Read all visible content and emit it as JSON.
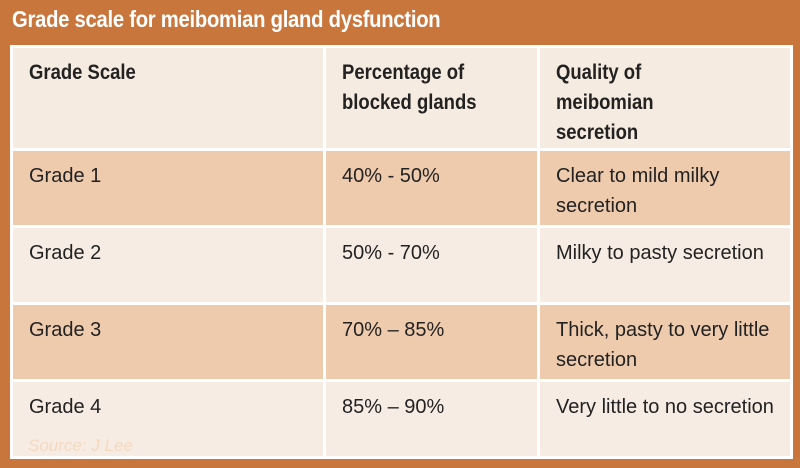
{
  "header": {
    "title": "Grade scale for meibomian gland dysfunction"
  },
  "table": {
    "columns": [
      "Grade Scale",
      "Percentage of blocked glands",
      "Quality of meibomian secretion"
    ],
    "rows": [
      [
        "Grade 1",
        "40% - 50%",
        "Clear to mild milky secretion"
      ],
      [
        "Grade 2",
        "50% - 70%",
        "Milky to pasty secretion"
      ],
      [
        "Grade 3",
        "70% – 85%",
        "Thick, pasty to very little secretion"
      ],
      [
        "Grade 4",
        "85% – 90%",
        "Very little to no secretion"
      ]
    ]
  },
  "footer": {
    "source": "Source: J Lee"
  }
}
